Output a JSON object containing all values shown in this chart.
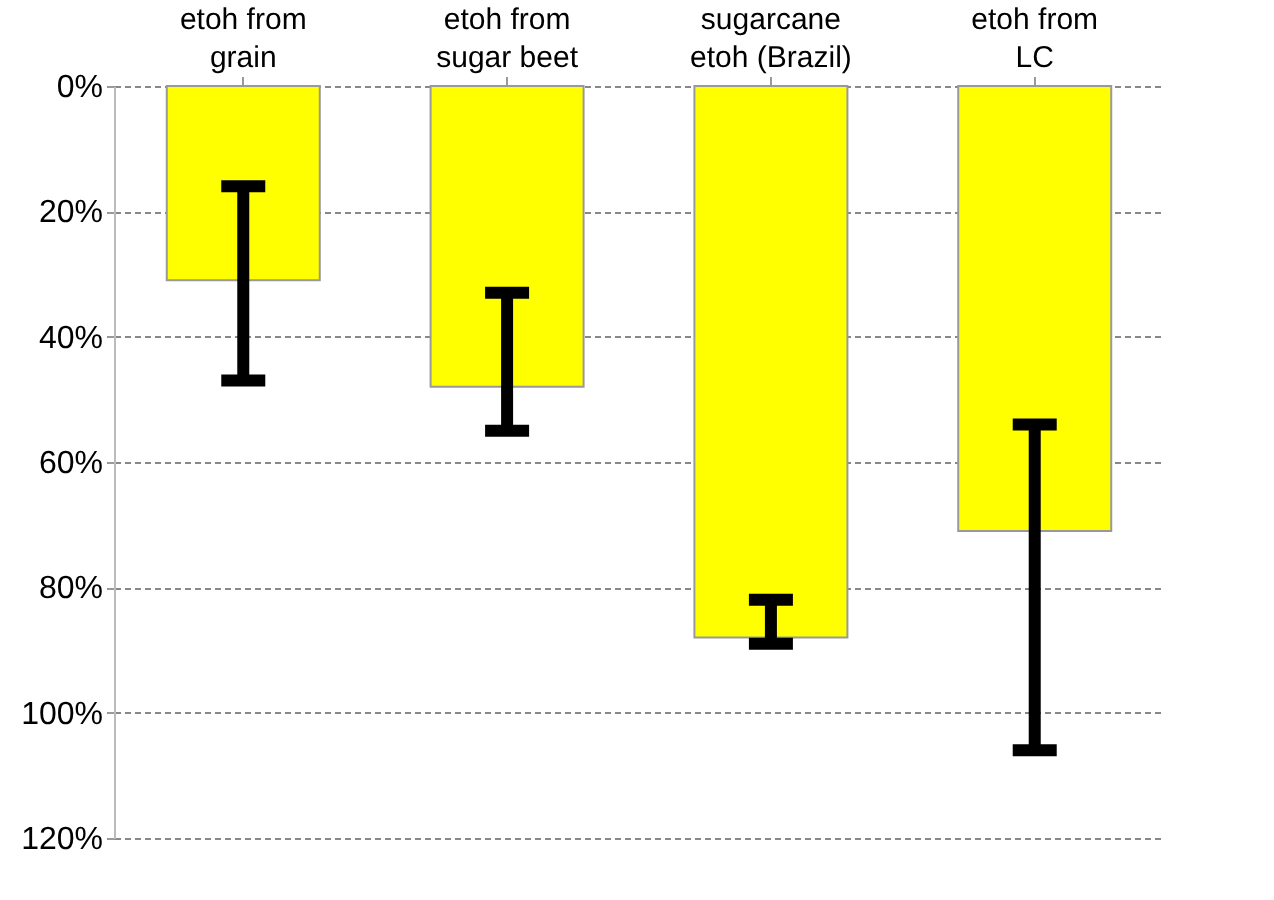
{
  "chart_data": {
    "type": "bar",
    "categories": [
      "etoh from\ngrain",
      "etoh from\nsugar beet",
      "sugarcane\netoh (Brazil)",
      "etoh from\nLC"
    ],
    "values": [
      31,
      48,
      88,
      71
    ],
    "errors": [
      [
        16,
        47
      ],
      [
        33,
        55
      ],
      [
        82,
        89
      ],
      [
        54,
        106
      ]
    ],
    "color": "#ffff00",
    "ylim": [
      120,
      0
    ],
    "yticks": [
      {
        "value": 0,
        "label": "0%"
      },
      {
        "value": 20,
        "label": "20%"
      },
      {
        "value": 40,
        "label": "40%"
      },
      {
        "value": 60,
        "label": "60%"
      },
      {
        "value": 80,
        "label": "80%"
      },
      {
        "value": 100,
        "label": "100%"
      },
      {
        "value": 120,
        "label": "120%"
      }
    ],
    "grid": "y"
  }
}
